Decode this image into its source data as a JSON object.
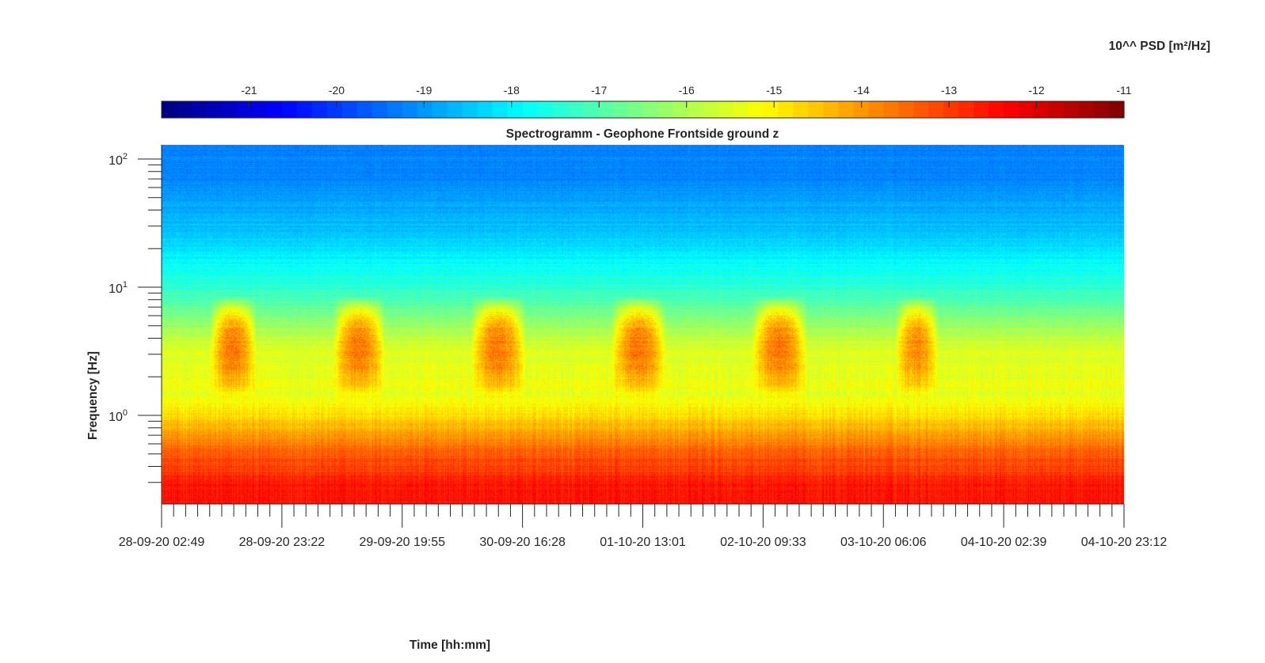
{
  "chart_data": {
    "type": "heatmap",
    "title": "Spectrogramm - Geophone Frontside ground z",
    "xlabel": "Time [hh:mm]",
    "ylabel": "Frequency [Hz]",
    "y_scale": "log",
    "ylim": [
      0.2,
      122
    ],
    "y_major_ticks": [
      {
        "value": 1,
        "base": "10",
        "exp": "0"
      },
      {
        "value": 10,
        "base": "10",
        "exp": "1"
      },
      {
        "value": 100,
        "base": "10",
        "exp": "2"
      }
    ],
    "x_tick_labels": [
      "28-09-20 02:49",
      "28-09-20 23:22",
      "29-09-20 19:55",
      "30-09-20 16:28",
      "01-10-20 13:01",
      "02-10-20 09:33",
      "03-10-20 06:06",
      "04-10-20 02:39",
      "04-10-20 23:12"
    ],
    "xlim": [
      "28-09-20 02:49",
      "04-10-20 23:12"
    ],
    "colorbar": {
      "label": "10^^ PSD [m²/Hz]",
      "location": "top",
      "colormap": "jet",
      "range": [
        -22,
        -11
      ],
      "ticks": [
        -21,
        -20,
        -19,
        -18,
        -17,
        -16,
        -15,
        -14,
        -13,
        -12,
        -11
      ]
    },
    "grid": false,
    "approx_levels": [
      {
        "freq_range_hz": [
          40,
          122
        ],
        "log10_psd": -19.2
      },
      {
        "freq_range_hz": [
          15,
          40
        ],
        "log10_psd": -18.4
      },
      {
        "freq_range_hz": [
          5,
          15
        ],
        "log10_psd": -17.2
      },
      {
        "freq_range_hz": [
          2.2,
          5
        ],
        "log10_psd": -15.5
      },
      {
        "freq_range_hz": [
          0.8,
          2.2
        ],
        "log10_psd": -15.3
      },
      {
        "freq_range_hz": [
          0.4,
          0.8
        ],
        "log10_psd": -13.6
      },
      {
        "freq_range_hz": [
          0.2,
          0.4
        ],
        "log10_psd": -12.6
      }
    ],
    "daily_activity_bursts": [
      {
        "start": "28-09-20 11:00",
        "end": "28-09-20 19:00",
        "freq_hz": [
          2.5,
          4.5
        ],
        "log10_psd": -13.6
      },
      {
        "start": "29-09-20 08:00",
        "end": "29-09-20 17:00",
        "freq_hz": [
          2.5,
          4.5
        ],
        "log10_psd": -13.6
      },
      {
        "start": "30-09-20 07:30",
        "end": "30-09-20 17:00",
        "freq_hz": [
          2.5,
          4.5
        ],
        "log10_psd": -13.6
      },
      {
        "start": "01-10-20 07:30",
        "end": "01-10-20 17:00",
        "freq_hz": [
          2.5,
          4.5
        ],
        "log10_psd": -13.6
      },
      {
        "start": "02-10-20 07:30",
        "end": "02-10-20 17:00",
        "freq_hz": [
          2.5,
          4.5
        ],
        "log10_psd": -13.6
      },
      {
        "start": "03-10-20 08:00",
        "end": "03-10-20 15:30",
        "freq_hz": [
          2.5,
          4.5
        ],
        "log10_psd": -13.8
      }
    ]
  }
}
